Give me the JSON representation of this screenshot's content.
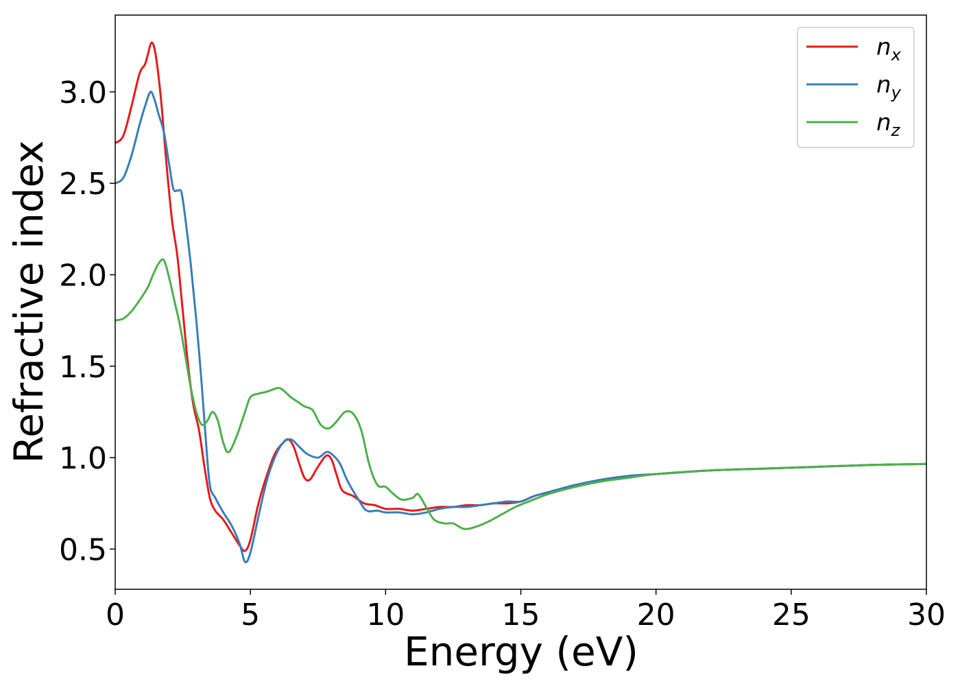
{
  "chart_data": {
    "type": "line",
    "title": "",
    "xlabel": "Energy (eV)",
    "ylabel": "Refractive index",
    "xlim": [
      0,
      30
    ],
    "ylim": [
      0.28,
      3.42
    ],
    "xticks": [
      0,
      5,
      10,
      15,
      20,
      25,
      30
    ],
    "yticks": [
      0.5,
      1.0,
      1.5,
      2.0,
      2.5,
      3.0
    ],
    "xtick_labels": [
      "0",
      "5",
      "10",
      "15",
      "20",
      "25",
      "30"
    ],
    "ytick_labels": [
      "0.5",
      "1.0",
      "1.5",
      "2.0",
      "2.5",
      "3.0"
    ],
    "grid": false,
    "legend_position": "top-right",
    "series": [
      {
        "name": "n_x",
        "legend_base": "n",
        "legend_sub": "x",
        "color": "#e41a1c",
        "points": [
          [
            0,
            2.72
          ],
          [
            0.3,
            2.76
          ],
          [
            0.6,
            2.92
          ],
          [
            0.9,
            3.1
          ],
          [
            1.1,
            3.15
          ],
          [
            1.2,
            3.2
          ],
          [
            1.35,
            3.27
          ],
          [
            1.5,
            3.2
          ],
          [
            1.7,
            2.95
          ],
          [
            1.9,
            2.6
          ],
          [
            2.1,
            2.3
          ],
          [
            2.3,
            2.1
          ],
          [
            2.5,
            1.8
          ],
          [
            2.7,
            1.5
          ],
          [
            2.9,
            1.28
          ],
          [
            3.1,
            1.15
          ],
          [
            3.3,
            0.95
          ],
          [
            3.5,
            0.78
          ],
          [
            3.7,
            0.71
          ],
          [
            4.0,
            0.66
          ],
          [
            4.3,
            0.59
          ],
          [
            4.6,
            0.52
          ],
          [
            4.8,
            0.49
          ],
          [
            5.0,
            0.55
          ],
          [
            5.3,
            0.75
          ],
          [
            5.6,
            0.9
          ],
          [
            5.9,
            1.02
          ],
          [
            6.2,
            1.08
          ],
          [
            6.4,
            1.1
          ],
          [
            6.6,
            1.06
          ],
          [
            6.8,
            0.97
          ],
          [
            7.0,
            0.89
          ],
          [
            7.2,
            0.88
          ],
          [
            7.5,
            0.95
          ],
          [
            7.8,
            1.01
          ],
          [
            8.0,
            0.99
          ],
          [
            8.2,
            0.9
          ],
          [
            8.4,
            0.82
          ],
          [
            8.8,
            0.79
          ],
          [
            9.2,
            0.75
          ],
          [
            9.6,
            0.74
          ],
          [
            10.0,
            0.72
          ],
          [
            10.5,
            0.72
          ],
          [
            11.0,
            0.71
          ],
          [
            11.5,
            0.72
          ],
          [
            12.0,
            0.73
          ],
          [
            12.5,
            0.73
          ],
          [
            13.0,
            0.74
          ],
          [
            13.5,
            0.74
          ],
          [
            14.0,
            0.75
          ],
          [
            14.5,
            0.75
          ],
          [
            15.0,
            0.76
          ],
          [
            15.5,
            0.79
          ],
          [
            16.0,
            0.81
          ],
          [
            17.0,
            0.85
          ],
          [
            18.0,
            0.88
          ],
          [
            19.0,
            0.9
          ],
          [
            20.0,
            0.91
          ],
          [
            22.0,
            0.93
          ],
          [
            24.0,
            0.94
          ],
          [
            26.0,
            0.95
          ],
          [
            28.0,
            0.96
          ],
          [
            30.0,
            0.965
          ]
        ]
      },
      {
        "name": "n_y",
        "legend_base": "n",
        "legend_sub": "y",
        "color": "#377eb8",
        "points": [
          [
            0,
            2.5
          ],
          [
            0.3,
            2.53
          ],
          [
            0.6,
            2.65
          ],
          [
            0.9,
            2.82
          ],
          [
            1.1,
            2.92
          ],
          [
            1.3,
            3.0
          ],
          [
            1.45,
            2.96
          ],
          [
            1.6,
            2.88
          ],
          [
            1.8,
            2.78
          ],
          [
            2.0,
            2.6
          ],
          [
            2.15,
            2.47
          ],
          [
            2.3,
            2.46
          ],
          [
            2.45,
            2.45
          ],
          [
            2.6,
            2.3
          ],
          [
            2.8,
            2.05
          ],
          [
            3.0,
            1.75
          ],
          [
            3.2,
            1.4
          ],
          [
            3.35,
            1.1
          ],
          [
            3.5,
            0.85
          ],
          [
            3.7,
            0.78
          ],
          [
            4.0,
            0.7
          ],
          [
            4.3,
            0.63
          ],
          [
            4.6,
            0.53
          ],
          [
            4.8,
            0.43
          ],
          [
            5.0,
            0.48
          ],
          [
            5.3,
            0.68
          ],
          [
            5.6,
            0.87
          ],
          [
            5.9,
            1.0
          ],
          [
            6.2,
            1.08
          ],
          [
            6.5,
            1.1
          ],
          [
            6.8,
            1.06
          ],
          [
            7.1,
            1.02
          ],
          [
            7.5,
            1.0
          ],
          [
            7.8,
            1.03
          ],
          [
            8.0,
            1.02
          ],
          [
            8.3,
            0.97
          ],
          [
            8.6,
            0.87
          ],
          [
            9.0,
            0.77
          ],
          [
            9.3,
            0.71
          ],
          [
            9.7,
            0.71
          ],
          [
            10.0,
            0.7
          ],
          [
            10.5,
            0.7
          ],
          [
            11.0,
            0.69
          ],
          [
            11.5,
            0.7
          ],
          [
            12.0,
            0.72
          ],
          [
            12.5,
            0.73
          ],
          [
            13.0,
            0.73
          ],
          [
            13.5,
            0.74
          ],
          [
            14.0,
            0.75
          ],
          [
            14.5,
            0.76
          ],
          [
            15.0,
            0.76
          ],
          [
            15.5,
            0.79
          ],
          [
            16.0,
            0.81
          ],
          [
            17.0,
            0.85
          ],
          [
            18.0,
            0.88
          ],
          [
            19.0,
            0.9
          ],
          [
            20.0,
            0.91
          ],
          [
            22.0,
            0.93
          ],
          [
            24.0,
            0.94
          ],
          [
            26.0,
            0.95
          ],
          [
            28.0,
            0.96
          ],
          [
            30.0,
            0.965
          ]
        ]
      },
      {
        "name": "n_z",
        "legend_base": "n",
        "legend_sub": "z",
        "color": "#4daf4a",
        "points": [
          [
            0,
            1.75
          ],
          [
            0.3,
            1.76
          ],
          [
            0.6,
            1.8
          ],
          [
            0.9,
            1.86
          ],
          [
            1.2,
            1.93
          ],
          [
            1.4,
            2.0
          ],
          [
            1.6,
            2.06
          ],
          [
            1.8,
            2.08
          ],
          [
            2.0,
            1.98
          ],
          [
            2.2,
            1.85
          ],
          [
            2.4,
            1.72
          ],
          [
            2.6,
            1.55
          ],
          [
            2.8,
            1.38
          ],
          [
            3.0,
            1.25
          ],
          [
            3.2,
            1.18
          ],
          [
            3.4,
            1.2
          ],
          [
            3.6,
            1.25
          ],
          [
            3.8,
            1.2
          ],
          [
            4.0,
            1.08
          ],
          [
            4.2,
            1.03
          ],
          [
            4.5,
            1.12
          ],
          [
            4.8,
            1.25
          ],
          [
            5.0,
            1.33
          ],
          [
            5.3,
            1.35
          ],
          [
            5.6,
            1.36
          ],
          [
            6.0,
            1.38
          ],
          [
            6.2,
            1.37
          ],
          [
            6.5,
            1.33
          ],
          [
            6.8,
            1.3
          ],
          [
            7.0,
            1.28
          ],
          [
            7.3,
            1.26
          ],
          [
            7.6,
            1.18
          ],
          [
            7.9,
            1.16
          ],
          [
            8.2,
            1.2
          ],
          [
            8.5,
            1.25
          ],
          [
            8.8,
            1.24
          ],
          [
            9.1,
            1.15
          ],
          [
            9.4,
            0.96
          ],
          [
            9.7,
            0.85
          ],
          [
            10.0,
            0.84
          ],
          [
            10.3,
            0.8
          ],
          [
            10.6,
            0.77
          ],
          [
            11.0,
            0.78
          ],
          [
            11.2,
            0.8
          ],
          [
            11.5,
            0.73
          ],
          [
            11.8,
            0.66
          ],
          [
            12.2,
            0.64
          ],
          [
            12.5,
            0.64
          ],
          [
            12.9,
            0.61
          ],
          [
            13.3,
            0.62
          ],
          [
            13.8,
            0.65
          ],
          [
            14.3,
            0.69
          ],
          [
            14.8,
            0.73
          ],
          [
            15.3,
            0.76
          ],
          [
            16.0,
            0.8
          ],
          [
            17.0,
            0.84
          ],
          [
            18.0,
            0.87
          ],
          [
            19.0,
            0.89
          ],
          [
            20.0,
            0.91
          ],
          [
            22.0,
            0.93
          ],
          [
            24.0,
            0.94
          ],
          [
            26.0,
            0.95
          ],
          [
            28.0,
            0.96
          ],
          [
            30.0,
            0.965
          ]
        ]
      }
    ]
  }
}
